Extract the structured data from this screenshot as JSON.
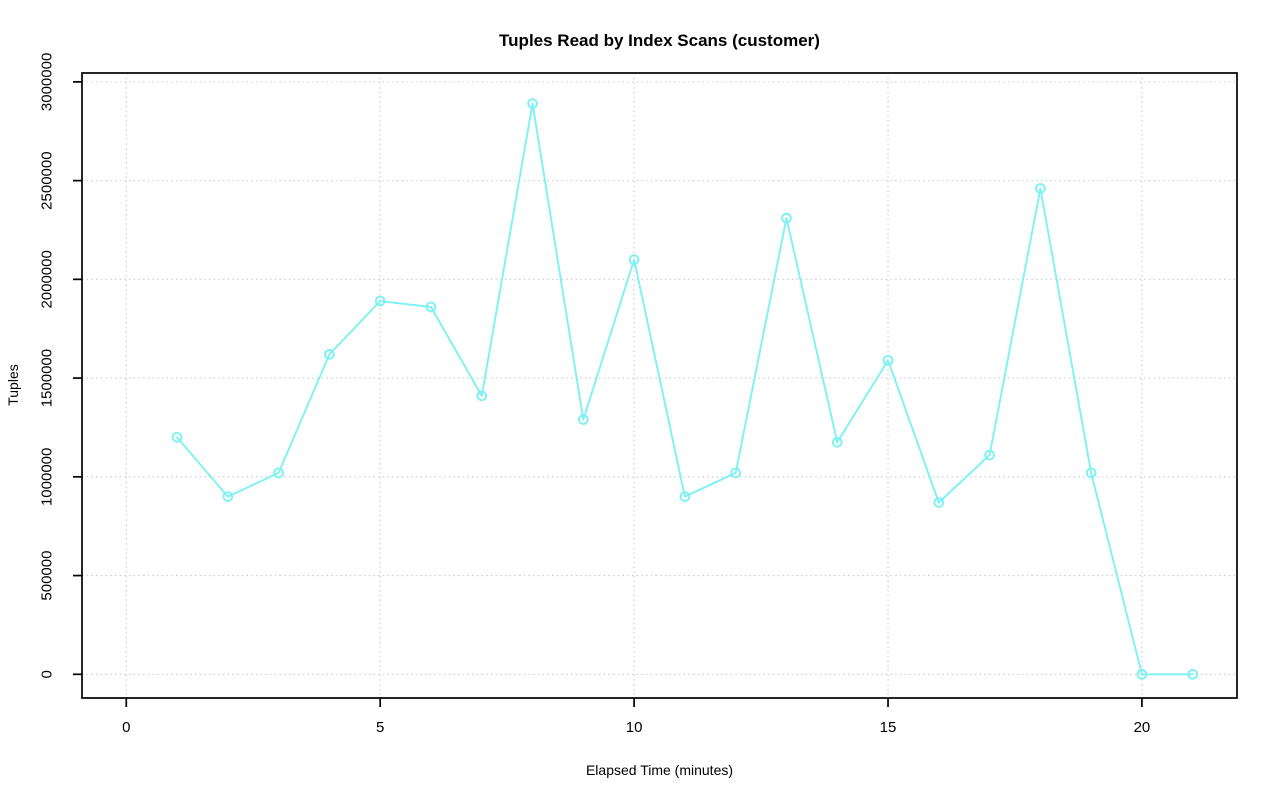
{
  "window": {
    "kind": "r-style-plot",
    "background": "#ffffff"
  },
  "chart_data": {
    "type": "line",
    "title": "Tuples Read by Index Scans (customer)",
    "xlabel": "Elapsed Time (minutes)",
    "ylabel": "Tuples",
    "series": [
      {
        "name": "tuples-read-by-index-scans",
        "x": [
          1,
          2,
          3,
          4,
          5,
          6,
          7,
          8,
          9,
          10,
          11,
          12,
          13,
          14,
          15,
          16,
          17,
          18,
          19,
          20,
          21
        ],
        "y": [
          1200000,
          900000,
          1020000,
          1620000,
          1890000,
          1860000,
          1410000,
          2890000,
          1290000,
          2100000,
          900000,
          1020000,
          2310000,
          1175000,
          1590000,
          870000,
          1110000,
          2460000,
          1020000,
          0,
          0
        ]
      }
    ],
    "xticks": [
      0,
      5,
      10,
      15,
      20
    ],
    "xtick_labels": [
      "0",
      "5",
      "10",
      "15",
      "20"
    ],
    "yticks": [
      0,
      500000,
      1000000,
      1500000,
      2000000,
      2500000,
      3000000
    ],
    "ytick_labels": [
      "0",
      "500000",
      "1000000",
      "1500000",
      "2000000",
      "2500000",
      "3000000"
    ],
    "xlim": [
      0,
      21
    ],
    "ylim": [
      0,
      3000000
    ],
    "grid": true,
    "grid_style": "dotted",
    "legend": "none",
    "marker": "open-circle"
  },
  "colors": {
    "series_line": "#7DF1F4",
    "marker_stroke": "#7DF1F4",
    "grid_line": "#c9c9c9",
    "axis": "#000000",
    "text": "#000000"
  }
}
